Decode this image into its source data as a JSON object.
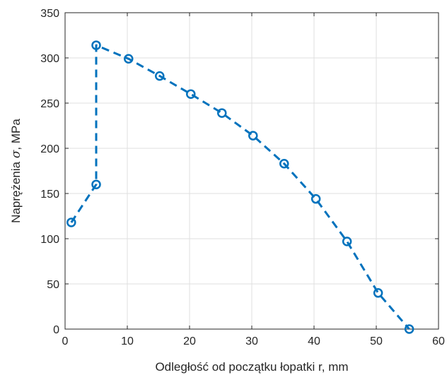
{
  "chart_data": {
    "type": "line",
    "title": "",
    "xlabel": "Odległość od początku łopatki r, mm",
    "ylabel": {
      "prefix": "Naprężenia ",
      "symbol": "σ",
      "suffix": ", MPa"
    },
    "xlim": [
      0,
      60
    ],
    "ylim": [
      0,
      350
    ],
    "xticks": [
      0,
      10,
      20,
      30,
      40,
      50,
      60
    ],
    "yticks": [
      0,
      50,
      100,
      150,
      200,
      250,
      300,
      350
    ],
    "grid": true,
    "legend": null,
    "series": [
      {
        "color": "#0072bd",
        "line_style": "dashed",
        "marker": "circle",
        "x": [
          1,
          5,
          5,
          10.2,
          15.2,
          20.2,
          25.2,
          30.2,
          35.2,
          40.3,
          45.3,
          50.3,
          55.3
        ],
        "y": [
          118,
          160,
          314,
          299,
          280,
          260,
          239,
          214,
          183,
          144,
          97,
          40,
          0
        ]
      }
    ]
  }
}
